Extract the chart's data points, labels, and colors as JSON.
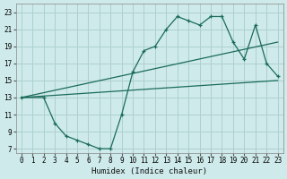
{
  "xlabel": "Humidex (Indice chaleur)",
  "bg_color": "#ceeaea",
  "grid_color": "#aed0d0",
  "line_color": "#1a6b5a",
  "xlim": [
    -0.5,
    23.5
  ],
  "ylim": [
    6.5,
    24.0
  ],
  "xticks": [
    0,
    1,
    2,
    3,
    4,
    5,
    6,
    7,
    8,
    9,
    10,
    11,
    12,
    13,
    14,
    15,
    16,
    17,
    18,
    19,
    20,
    21,
    22,
    23
  ],
  "yticks": [
    7,
    9,
    11,
    13,
    15,
    17,
    19,
    21,
    23
  ],
  "line1_x": [
    0,
    2,
    3,
    4,
    5,
    6,
    7,
    8,
    9,
    10,
    11,
    12,
    13,
    14,
    15,
    16,
    17,
    18,
    19,
    20,
    21,
    22,
    23
  ],
  "line1_y": [
    13,
    13,
    10,
    8.5,
    8.0,
    7.5,
    7.0,
    7.0,
    11.0,
    16.0,
    18.5,
    19.0,
    21.0,
    22.5,
    22.0,
    21.5,
    22.5,
    22.5,
    19.5,
    17.5,
    21.5,
    17.0,
    15.5
  ],
  "line2_x": [
    0,
    23
  ],
  "line2_y": [
    13,
    19.5
  ],
  "line3_x": [
    0,
    23
  ],
  "line3_y": [
    13,
    15.0
  ],
  "tick_fontsize": 5.5,
  "xlabel_fontsize": 6.5
}
